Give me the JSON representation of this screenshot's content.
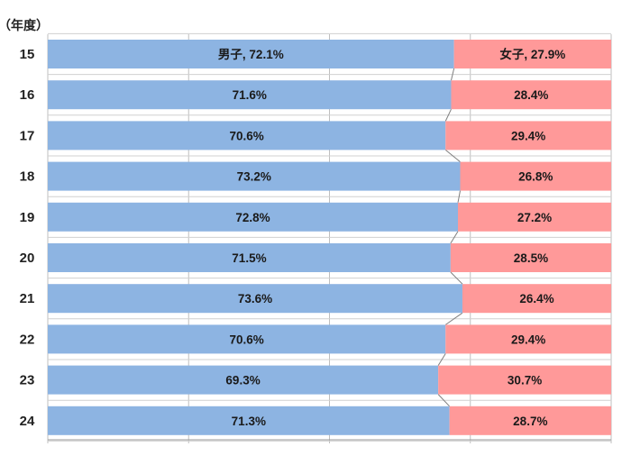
{
  "chart_data": {
    "type": "bar",
    "orientation": "horizontal",
    "stacked": true,
    "percent": true,
    "unit_label": "（年度）",
    "categories": [
      "15",
      "16",
      "17",
      "18",
      "19",
      "20",
      "21",
      "22",
      "23",
      "24"
    ],
    "series": [
      {
        "name": "男子",
        "color": "#8DB4E2",
        "values": [
          72.1,
          71.6,
          70.6,
          73.2,
          72.8,
          71.5,
          73.6,
          70.6,
          69.3,
          71.3
        ],
        "labels": [
          "男子, 72.1%",
          "71.6%",
          "70.6%",
          "73.2%",
          "72.8%",
          "71.5%",
          "73.6%",
          "70.6%",
          "69.3%",
          "71.3%"
        ]
      },
      {
        "name": "女子",
        "color": "#FF9999",
        "values": [
          27.9,
          28.4,
          29.4,
          26.8,
          27.2,
          28.5,
          26.4,
          29.4,
          30.7,
          28.7
        ],
        "labels": [
          "女子, 27.9%",
          "28.4%",
          "29.4%",
          "26.8%",
          "27.2%",
          "28.5%",
          "26.4%",
          "29.4%",
          "30.7%",
          "28.7%"
        ]
      }
    ],
    "xlim": [
      0,
      100
    ],
    "grid": true,
    "series_lines": true,
    "legend": "none"
  }
}
